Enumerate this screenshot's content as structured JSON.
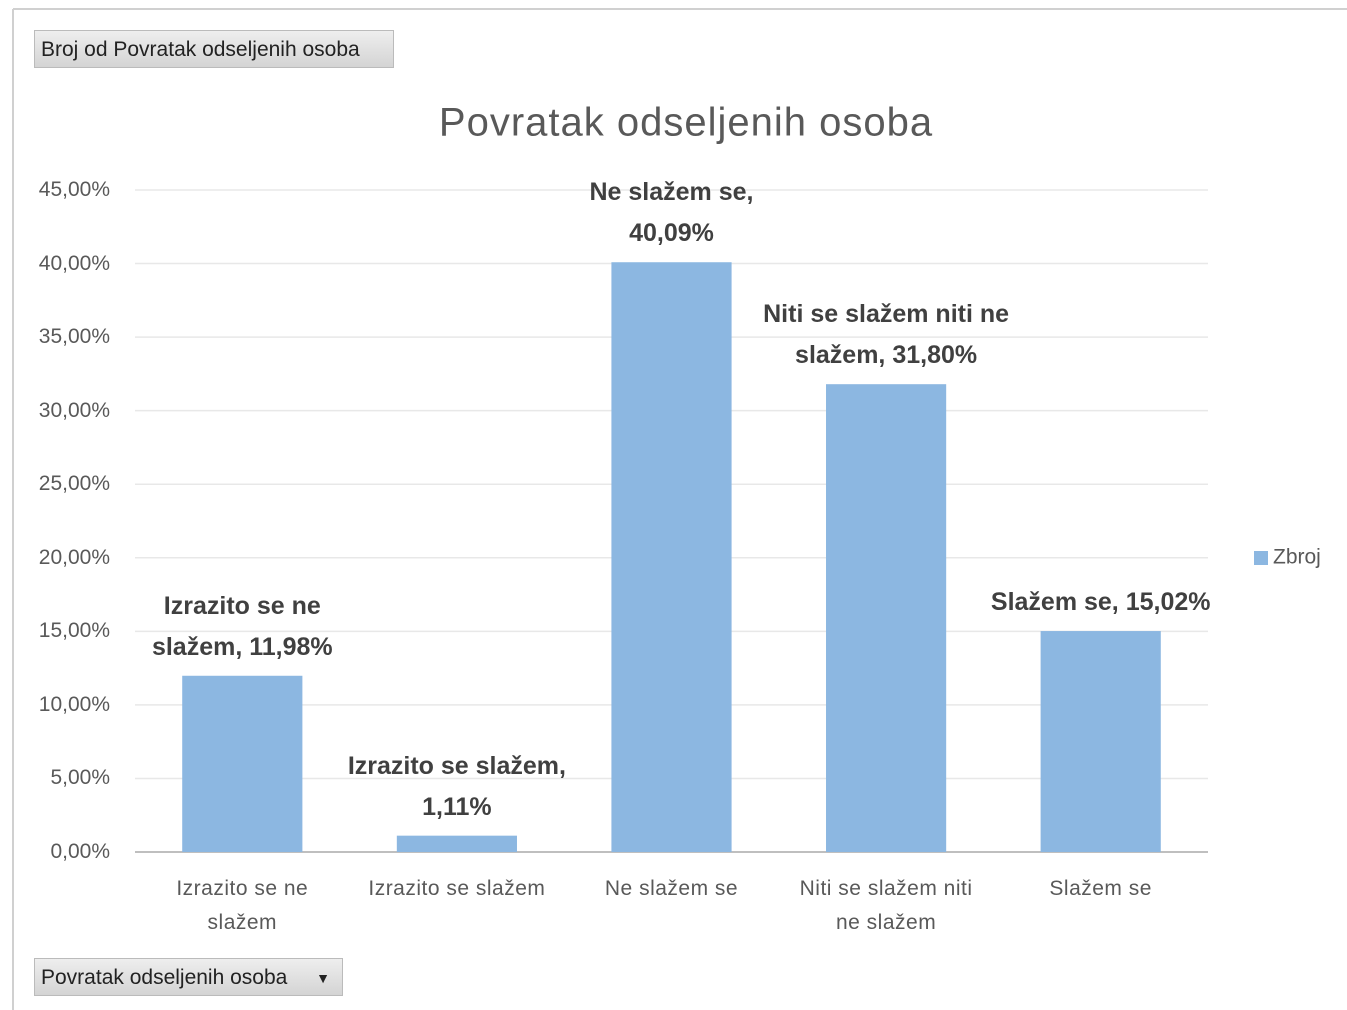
{
  "pivot_field_value": "Broj od Povratak odseljenih osoba",
  "pivot_field_axis": "Povratak odseljenih osoba",
  "chart_data": {
    "type": "bar",
    "title": "Povratak odseljenih osoba",
    "categories": [
      "Izrazito se ne slažem",
      "Izrazito se slažem",
      "Ne slažem se",
      "Niti se slažem niti ne slažem",
      "Slažem se"
    ],
    "series": [
      {
        "name": "Zbroj",
        "color": "#8cb7e1",
        "values": [
          11.98,
          1.11,
          40.09,
          31.8,
          15.02
        ],
        "value_labels": [
          "Izrazito se ne slažem, 11,98%",
          "Izrazito se slažem, 1,11%",
          "Ne slažem se, 40,09%",
          "Niti se slažem niti ne slažem, 31,80%",
          "Slažem se, 15,02%"
        ]
      }
    ],
    "ylim": [
      0,
      45
    ],
    "yticks": [
      {
        "value": 0,
        "label": "0,00%"
      },
      {
        "value": 5,
        "label": "5,00%"
      },
      {
        "value": 10,
        "label": "10,00%"
      },
      {
        "value": 15,
        "label": "15,00%"
      },
      {
        "value": 20,
        "label": "20,00%"
      },
      {
        "value": 25,
        "label": "25,00%"
      },
      {
        "value": 30,
        "label": "30,00%"
      },
      {
        "value": 35,
        "label": "35,00%"
      },
      {
        "value": 40,
        "label": "40,00%"
      },
      {
        "value": 45,
        "label": "45,00%"
      }
    ],
    "grid": true,
    "legend": "right"
  }
}
